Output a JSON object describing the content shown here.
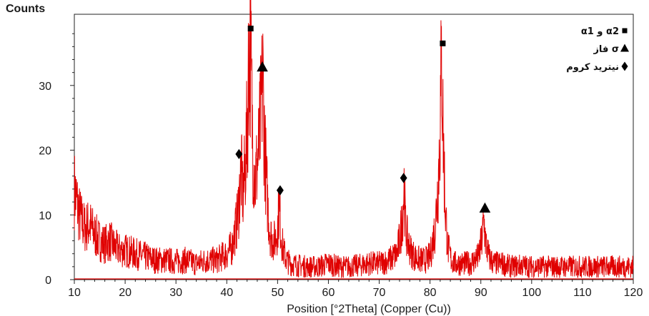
{
  "chart_data": {
    "type": "line",
    "title": "",
    "ylabel": "Counts",
    "xlabel": "Position [°2Theta] (Copper (Cu))",
    "xlim": [
      10,
      120
    ],
    "ylim": [
      0,
      41
    ],
    "x_ticks": [
      10,
      20,
      30,
      40,
      50,
      60,
      70,
      80,
      90,
      100,
      110,
      120
    ],
    "y_ticks": [
      0,
      10,
      20,
      30
    ],
    "grid": false,
    "line_color": "#e00000",
    "series": [
      {
        "x": [
          10,
          11,
          12,
          13,
          14,
          15,
          16,
          17,
          18,
          19,
          20,
          22,
          24,
          26,
          28,
          30,
          32,
          34,
          36,
          38,
          40,
          41,
          42,
          42.4,
          42.8,
          43.2,
          43.6,
          44.0,
          44.3,
          44.6,
          44.9,
          45.2,
          45.6,
          46.0,
          46.4,
          46.8,
          47.1,
          47.4,
          47.8,
          48.2,
          48.6,
          49.0,
          49.5,
          50.0,
          50.3,
          50.6,
          50.9,
          51.3,
          51.8,
          52.5,
          54,
          56,
          58,
          60,
          62,
          64,
          66,
          68,
          70,
          72,
          73.5,
          74.2,
          74.6,
          74.9,
          75.2,
          75.6,
          76.2,
          77,
          78,
          79,
          80,
          81,
          81.6,
          82.0,
          82.3,
          82.6,
          83.0,
          83.5,
          84.2,
          85,
          86,
          88,
          89.5,
          90.2,
          90.6,
          91.0,
          91.6,
          92.5,
          94,
          96,
          98,
          100,
          102,
          104,
          106,
          108,
          110,
          112,
          114,
          116,
          118,
          120
        ],
        "y": [
          14,
          10,
          8,
          8.5,
          7,
          6,
          5.5,
          6,
          5,
          4.5,
          4.5,
          4,
          3.5,
          3,
          3,
          2.8,
          3,
          2.5,
          3,
          3,
          4,
          5,
          9,
          12,
          17,
          13,
          17,
          23,
          33,
          38,
          28,
          19,
          15,
          18,
          21,
          27,
          31,
          22,
          15,
          10,
          7,
          6,
          6,
          8,
          11.5,
          8,
          5.5,
          4,
          3,
          2.5,
          2.2,
          2,
          2,
          2.5,
          2,
          2,
          2.2,
          2.5,
          2.5,
          3,
          4,
          7,
          10.5,
          14.5,
          8,
          6,
          4.5,
          3.5,
          3,
          3,
          3.5,
          8,
          15,
          24,
          35,
          22,
          11,
          5,
          3,
          2.5,
          2.5,
          2.5,
          3.5,
          6,
          9,
          5.5,
          3.5,
          2.5,
          2.5,
          2,
          2.2,
          2,
          2,
          2,
          2,
          2,
          2,
          2,
          2,
          2,
          2,
          2
        ]
      }
    ],
    "annotations": [
      {
        "x": 42.4,
        "y": 19.4,
        "marker": "diamond"
      },
      {
        "x": 44.7,
        "y": 38.8,
        "marker": "square"
      },
      {
        "x": 47.0,
        "y": 32.8,
        "marker": "triangle"
      },
      {
        "x": 50.5,
        "y": 13.8,
        "marker": "diamond"
      },
      {
        "x": 74.8,
        "y": 15.7,
        "marker": "diamond"
      },
      {
        "x": 82.5,
        "y": 36.5,
        "marker": "square"
      },
      {
        "x": 90.8,
        "y": 11.0,
        "marker": "triangle"
      }
    ],
    "legend": {
      "placement": "top-right",
      "entries": [
        {
          "marker": "square",
          "label": "α1 و α2"
        },
        {
          "marker": "triangle",
          "label": "فاز σ"
        },
        {
          "marker": "diamond",
          "label": "نیترید کروم"
        }
      ]
    }
  }
}
